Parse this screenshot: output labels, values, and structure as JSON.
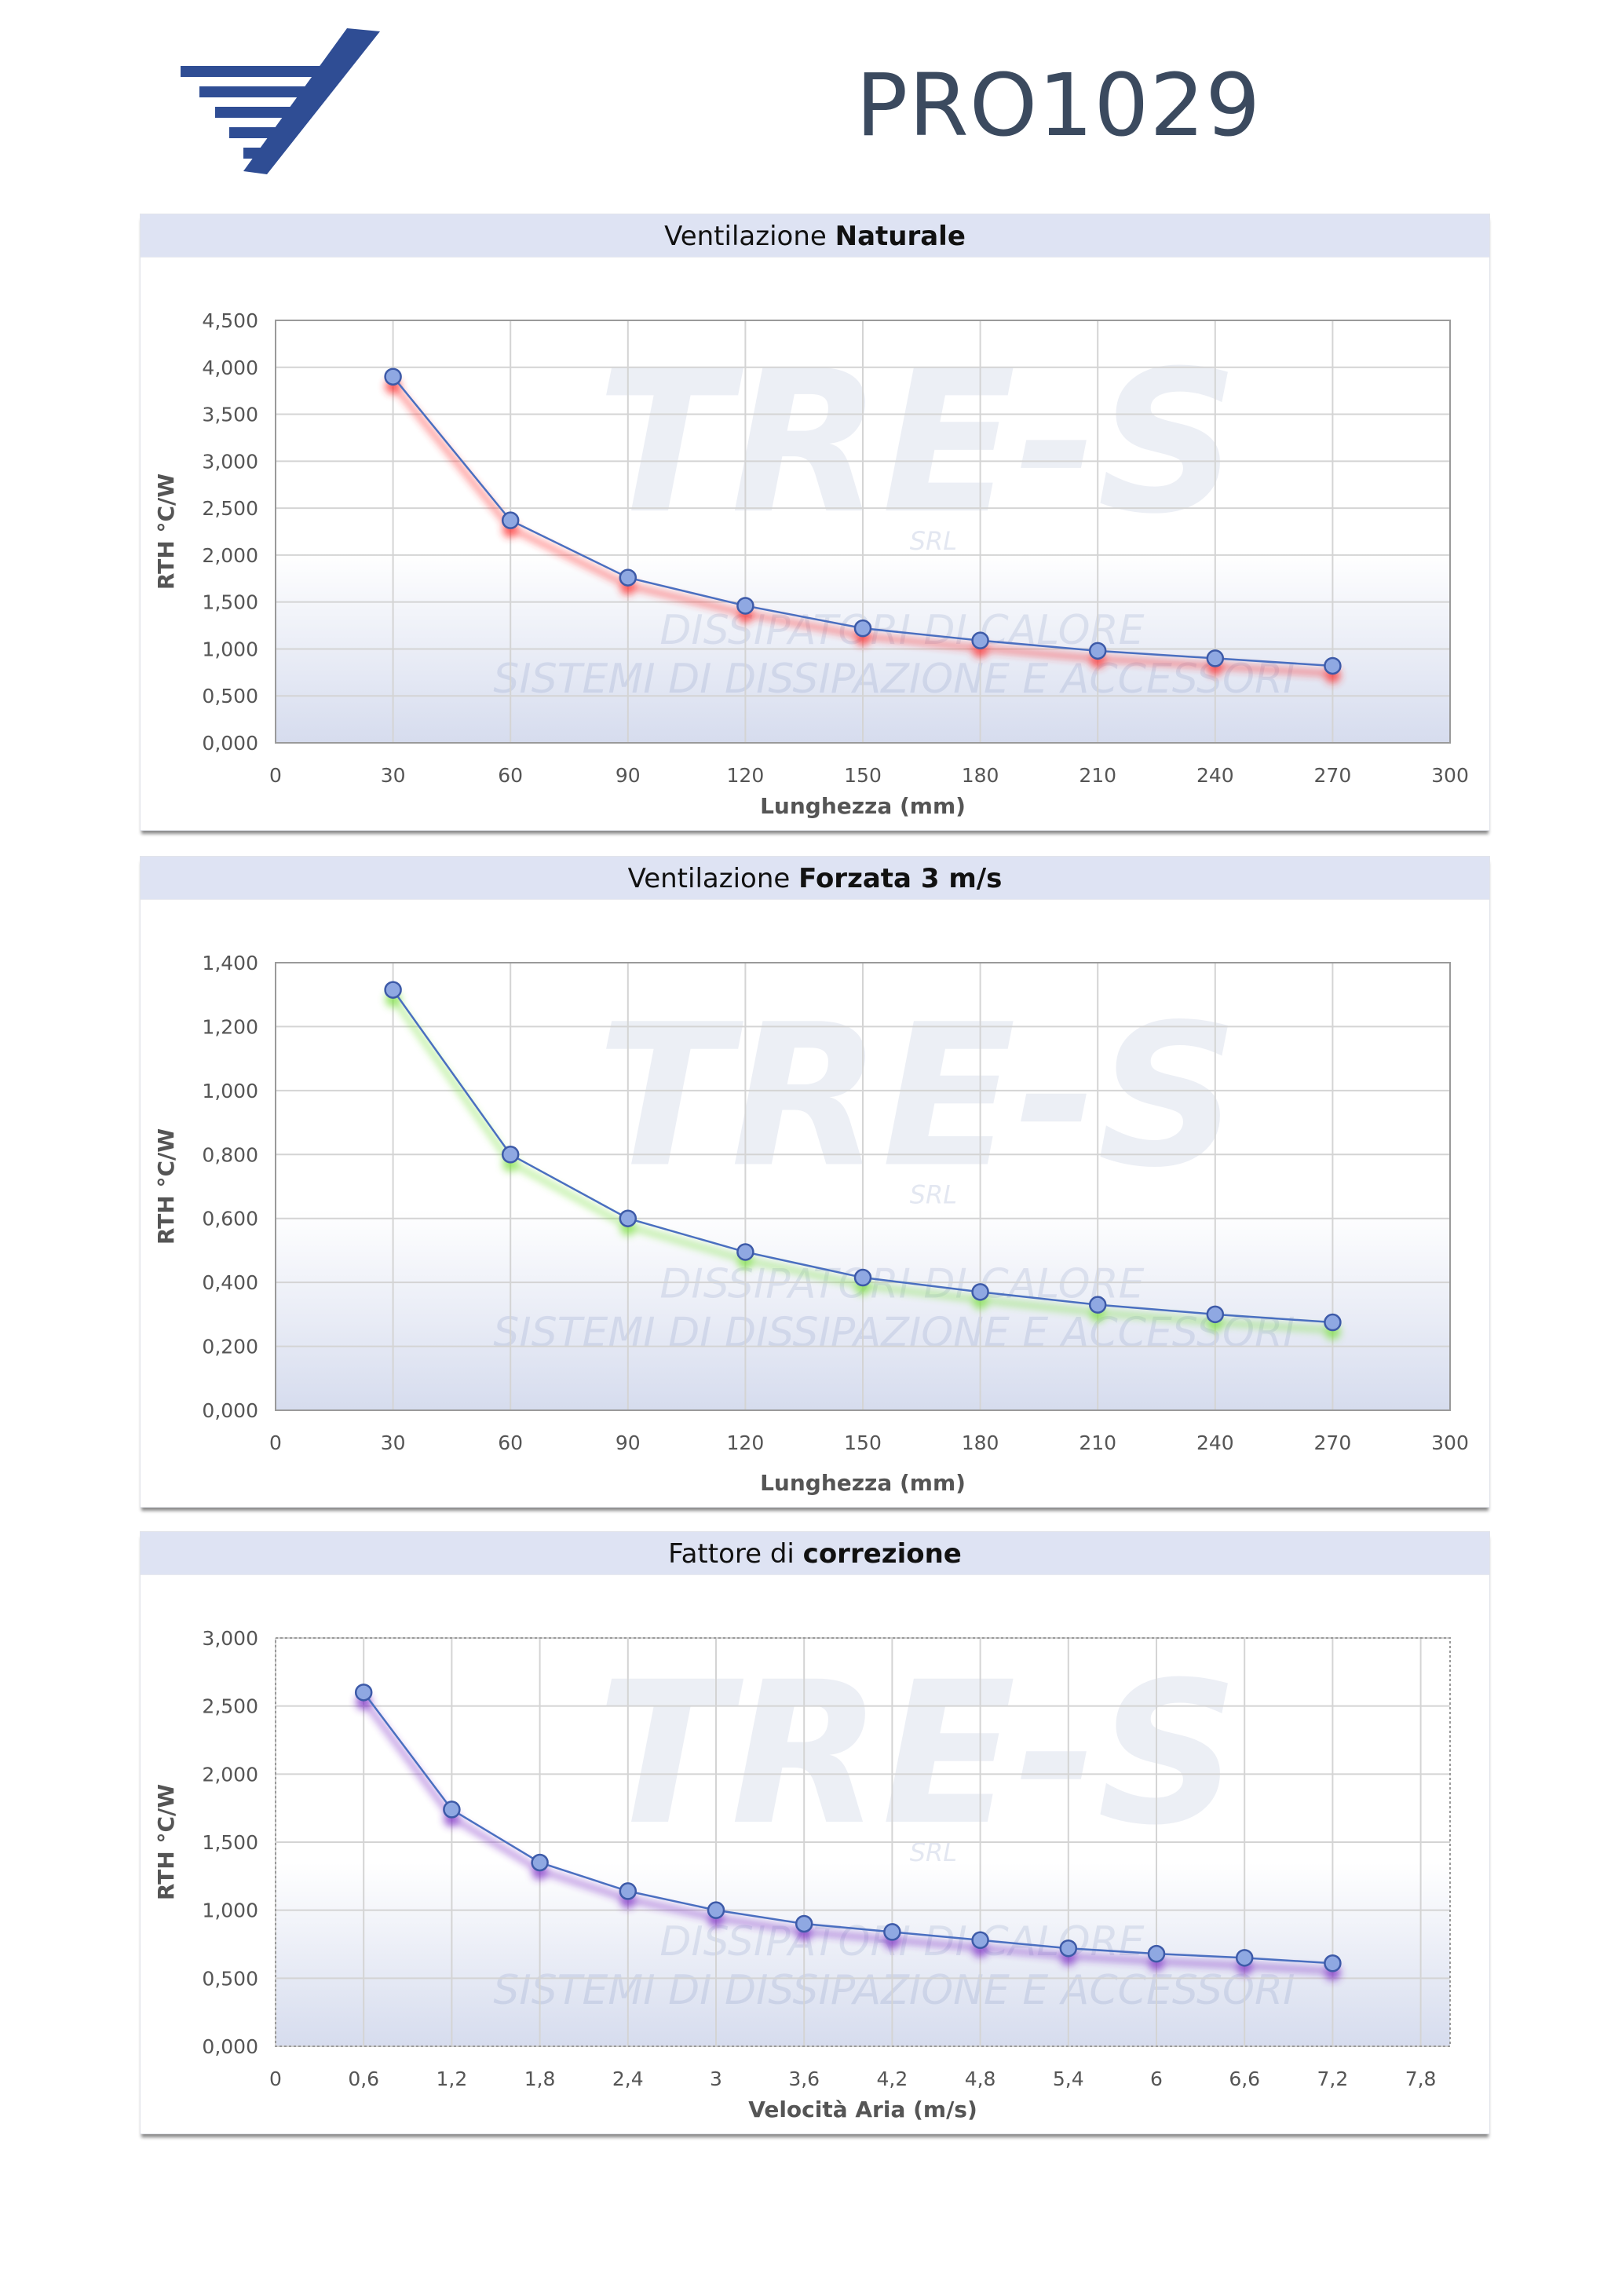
{
  "header": {
    "logo": "tre-s-logo",
    "code": "PRO1029"
  },
  "watermark": {
    "brand": "TRE-S",
    "suffix": "SRL",
    "line1": "DISSIPATORI DI CALORE",
    "line2": "SISTEMI DI DISSIPAZIONE E ACCESSORI"
  },
  "chart_data": [
    {
      "type": "line",
      "title_plain": "Ventilazione ",
      "title_bold": "Naturale",
      "xlabel": "Lunghezza (mm)",
      "ylabel": "RTH °C/W",
      "xlim": [
        0,
        300
      ],
      "ylim": [
        0,
        4.5
      ],
      "xticks": [
        0,
        30,
        60,
        90,
        120,
        150,
        180,
        210,
        240,
        270,
        300
      ],
      "xtick_labels": [
        "0",
        "30",
        "60",
        "90",
        "120",
        "150",
        "180",
        "210",
        "240",
        "270",
        "300"
      ],
      "yticks": [
        0,
        0.5,
        1,
        1.5,
        2,
        2.5,
        3,
        3.5,
        4,
        4.5
      ],
      "ytick_labels": [
        "0,000",
        "0,500",
        "1,000",
        "1,500",
        "2,000",
        "2,500",
        "3,000",
        "3,500",
        "4,000",
        "4,500"
      ],
      "grid": true,
      "shadow_color": "#ff2a2a",
      "series": [
        {
          "color": "#4a6fc0",
          "x": [
            30,
            60,
            90,
            120,
            150,
            180,
            210,
            240,
            270
          ],
          "y": [
            3.9,
            2.37,
            1.76,
            1.46,
            1.22,
            1.09,
            0.98,
            0.9,
            0.82
          ]
        }
      ]
    },
    {
      "type": "line",
      "title_plain": "Ventilazione ",
      "title_bold": "Forzata 3 m/s",
      "xlabel": "Lunghezza (mm)",
      "ylabel": "RTH °C/W",
      "xlim": [
        0,
        300
      ],
      "ylim": [
        0,
        1.4
      ],
      "xticks": [
        0,
        30,
        60,
        90,
        120,
        150,
        180,
        210,
        240,
        270,
        300
      ],
      "xtick_labels": [
        "0",
        "30",
        "60",
        "90",
        "120",
        "150",
        "180",
        "210",
        "240",
        "270",
        "300"
      ],
      "yticks": [
        0,
        0.2,
        0.4,
        0.6,
        0.8,
        1.0,
        1.2,
        1.4
      ],
      "ytick_labels": [
        "0,000",
        "0,200",
        "0,400",
        "0,600",
        "0,800",
        "1,000",
        "1,200",
        "1,400"
      ],
      "grid": true,
      "shadow_color": "#7be040",
      "series": [
        {
          "color": "#4a6fc0",
          "x": [
            30,
            60,
            90,
            120,
            150,
            180,
            210,
            240,
            270
          ],
          "y": [
            1.315,
            0.8,
            0.6,
            0.495,
            0.415,
            0.37,
            0.33,
            0.3,
            0.275
          ]
        }
      ]
    },
    {
      "type": "line",
      "title_plain": "Fattore di ",
      "title_bold": "correzione",
      "xlabel": "Velocità Aria (m/s)",
      "ylabel": "RTH °C/W",
      "xlim": [
        0,
        8.0
      ],
      "ylim": [
        0,
        3.0
      ],
      "xticks": [
        0,
        0.6,
        1.2,
        1.8,
        2.4,
        3.0,
        3.6,
        4.2,
        4.8,
        5.4,
        6.0,
        6.6,
        7.2,
        7.8
      ],
      "xtick_labels": [
        "0",
        "0,6",
        "1,2",
        "1,8",
        "2,4",
        "3",
        "3,6",
        "4,2",
        "4,8",
        "5,4",
        "6",
        "6,6",
        "7,2",
        "7,8"
      ],
      "yticks": [
        0,
        0.5,
        1.0,
        1.5,
        2.0,
        2.5,
        3.0
      ],
      "ytick_labels": [
        "0,000",
        "0,500",
        "1,000",
        "1,500",
        "2,000",
        "2,500",
        "3,000"
      ],
      "grid": true,
      "shadow_color": "#7a2bc4",
      "series": [
        {
          "color": "#4a6fc0",
          "x": [
            0.6,
            1.2,
            1.8,
            2.4,
            3.0,
            3.6,
            4.2,
            4.8,
            5.4,
            6.0,
            6.6,
            7.2
          ],
          "y": [
            2.6,
            1.74,
            1.35,
            1.14,
            1.0,
            0.9,
            0.84,
            0.78,
            0.72,
            0.68,
            0.65,
            0.61
          ]
        }
      ]
    }
  ]
}
